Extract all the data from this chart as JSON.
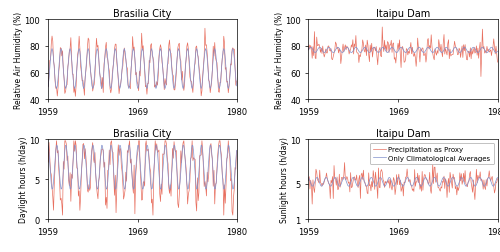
{
  "titles": [
    "Brasilia City",
    "Itaipu Dam",
    "Brasilia City",
    "Itaipu Dam"
  ],
  "xlim": [
    1959,
    1980
  ],
  "xticks": [
    1959,
    1969,
    1980
  ],
  "ylim_humidity": [
    40,
    100
  ],
  "yticks_humidity": [
    40,
    60,
    80,
    100
  ],
  "ylim_daylight_brasilia": [
    0,
    10
  ],
  "yticks_daylight_brasilia": [
    0,
    5,
    10
  ],
  "ylim_sunlight_itaipu": [
    1,
    10
  ],
  "yticks_sunlight_itaipu": [
    1,
    5,
    10
  ],
  "ylabel_humidity": "Relative Air Humidity (%)",
  "ylabel_daylight": "Daylight hours (h/day)",
  "ylabel_sunlight": "Sunlight hours (h/day)",
  "color_proxy": "#E87060",
  "color_clim": "#8090CC",
  "legend_labels": [
    "Precipitation as Proxy",
    "Only Climatological Averages"
  ],
  "n_years": 21,
  "months_per_year": 12,
  "seed": 42,
  "figsize": [
    5.0,
    2.53
  ],
  "dpi": 100
}
